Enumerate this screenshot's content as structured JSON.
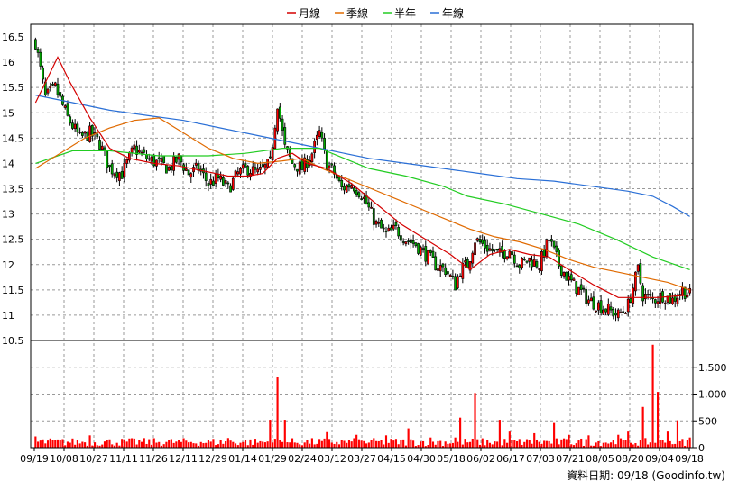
{
  "chart_data": {
    "type": "candlestick-volume",
    "legend": [
      {
        "name": "月線",
        "color": "#d40000"
      },
      {
        "name": "季線",
        "color": "#e06a00"
      },
      {
        "name": "半年",
        "color": "#22cc22"
      },
      {
        "name": "年線",
        "color": "#2a6fd6"
      }
    ],
    "colors": {
      "up": "#ff0000",
      "down": "#00aa00",
      "volume": "#ff0000"
    },
    "price_axis": {
      "min": 10.5,
      "max": 16.5,
      "ticks": [
        "16.5",
        "16",
        "15.5",
        "15",
        "14.5",
        "14",
        "13.5",
        "13",
        "12.5",
        "12",
        "11.5",
        "11",
        "10.5"
      ]
    },
    "volume_axis": {
      "min": 0,
      "max": 2000,
      "ticks": [
        "1,500",
        "1,000",
        "500",
        "0"
      ]
    },
    "date_labels": [
      "09/19",
      "10/08",
      "10/27",
      "11/11",
      "11/26",
      "12/11",
      "12/29",
      "01/14",
      "01/29",
      "02/24",
      "03/12",
      "03/27",
      "04/15",
      "04/30",
      "05/18",
      "06/02",
      "06/17",
      "07/03",
      "07/21",
      "08/05",
      "08/20",
      "09/04",
      "09/18"
    ],
    "footer": "資料日期: 09/18 (Goodinfo.tw)",
    "close_series": [
      [
        0,
        16.4
      ],
      [
        4,
        15.3
      ],
      [
        8,
        15.5
      ],
      [
        13,
        14.9
      ],
      [
        18,
        14.5
      ],
      [
        22,
        14.6
      ],
      [
        26,
        14.4
      ],
      [
        30,
        13.9
      ],
      [
        35,
        13.8
      ],
      [
        40,
        14.3
      ],
      [
        45,
        14.1
      ],
      [
        50,
        14.0
      ],
      [
        54,
        13.9
      ],
      [
        58,
        14.1
      ],
      [
        62,
        13.8
      ],
      [
        66,
        13.9
      ],
      [
        70,
        13.6
      ],
      [
        74,
        13.7
      ],
      [
        78,
        13.5
      ],
      [
        82,
        13.8
      ],
      [
        86,
        13.9
      ],
      [
        90,
        13.8
      ],
      [
        95,
        14.0
      ],
      [
        98,
        15.2
      ],
      [
        101,
        14.3
      ],
      [
        104,
        14.0
      ],
      [
        108,
        13.9
      ],
      [
        112,
        14.2
      ],
      [
        115,
        14.6
      ],
      [
        118,
        14.0
      ],
      [
        121,
        13.8
      ],
      [
        124,
        13.5
      ],
      [
        128,
        13.6
      ],
      [
        132,
        13.4
      ],
      [
        135,
        13.1
      ],
      [
        138,
        12.8
      ],
      [
        142,
        12.6
      ],
      [
        146,
        12.7
      ],
      [
        150,
        12.5
      ],
      [
        154,
        12.4
      ],
      [
        158,
        12.2
      ],
      [
        162,
        12.0
      ],
      [
        166,
        11.9
      ],
      [
        170,
        11.6
      ],
      [
        172,
        11.9
      ],
      [
        175,
        12.0
      ],
      [
        178,
        12.5
      ],
      [
        181,
        12.4
      ],
      [
        184,
        12.3
      ],
      [
        188,
        12.2
      ],
      [
        192,
        12.3
      ],
      [
        196,
        12.0
      ],
      [
        200,
        12.1
      ],
      [
        204,
        12.0
      ],
      [
        208,
        12.5
      ],
      [
        212,
        12.0
      ],
      [
        216,
        11.7
      ],
      [
        220,
        11.5
      ],
      [
        224,
        11.3
      ],
      [
        228,
        11.2
      ],
      [
        232,
        11.1
      ],
      [
        236,
        11.0
      ],
      [
        240,
        11.2
      ],
      [
        244,
        11.9
      ],
      [
        246,
        11.4
      ],
      [
        250,
        11.3
      ],
      [
        254,
        11.4
      ],
      [
        258,
        11.3
      ],
      [
        262,
        11.5
      ],
      [
        265,
        11.4
      ]
    ],
    "ma_monthly": [
      [
        0,
        15.2
      ],
      [
        5,
        15.7
      ],
      [
        9,
        16.1
      ],
      [
        14,
        15.6
      ],
      [
        22,
        14.9
      ],
      [
        30,
        14.3
      ],
      [
        38,
        14.1
      ],
      [
        48,
        14.0
      ],
      [
        58,
        13.95
      ],
      [
        68,
        13.85
      ],
      [
        78,
        13.75
      ],
      [
        86,
        13.75
      ],
      [
        92,
        13.8
      ],
      [
        98,
        14.1
      ],
      [
        104,
        14.2
      ],
      [
        110,
        14.0
      ],
      [
        118,
        13.9
      ],
      [
        128,
        13.6
      ],
      [
        138,
        13.2
      ],
      [
        148,
        12.8
      ],
      [
        158,
        12.5
      ],
      [
        168,
        12.2
      ],
      [
        176,
        11.9
      ],
      [
        184,
        12.2
      ],
      [
        192,
        12.3
      ],
      [
        200,
        12.2
      ],
      [
        208,
        12.15
      ],
      [
        216,
        11.9
      ],
      [
        226,
        11.6
      ],
      [
        236,
        11.35
      ],
      [
        244,
        11.35
      ],
      [
        252,
        11.35
      ],
      [
        265,
        11.4
      ]
    ],
    "ma_quarterly": [
      [
        0,
        13.9
      ],
      [
        10,
        14.2
      ],
      [
        20,
        14.5
      ],
      [
        30,
        14.7
      ],
      [
        40,
        14.85
      ],
      [
        50,
        14.9
      ],
      [
        60,
        14.6
      ],
      [
        70,
        14.3
      ],
      [
        80,
        14.1
      ],
      [
        90,
        14.0
      ],
      [
        100,
        14.05
      ],
      [
        108,
        14.1
      ],
      [
        116,
        13.9
      ],
      [
        126,
        13.7
      ],
      [
        136,
        13.5
      ],
      [
        146,
        13.3
      ],
      [
        156,
        13.1
      ],
      [
        166,
        12.9
      ],
      [
        176,
        12.7
      ],
      [
        186,
        12.55
      ],
      [
        196,
        12.45
      ],
      [
        206,
        12.3
      ],
      [
        216,
        12.1
      ],
      [
        226,
        11.95
      ],
      [
        236,
        11.85
      ],
      [
        246,
        11.75
      ],
      [
        256,
        11.65
      ],
      [
        265,
        11.5
      ]
    ],
    "ma_halfyear": [
      [
        0,
        14.0
      ],
      [
        15,
        14.25
      ],
      [
        30,
        14.25
      ],
      [
        50,
        14.15
      ],
      [
        70,
        14.15
      ],
      [
        85,
        14.2
      ],
      [
        100,
        14.3
      ],
      [
        115,
        14.3
      ],
      [
        125,
        14.1
      ],
      [
        135,
        13.9
      ],
      [
        150,
        13.75
      ],
      [
        165,
        13.55
      ],
      [
        175,
        13.35
      ],
      [
        190,
        13.2
      ],
      [
        205,
        13.0
      ],
      [
        220,
        12.8
      ],
      [
        235,
        12.5
      ],
      [
        250,
        12.15
      ],
      [
        265,
        11.9
      ]
    ],
    "ma_yearly": [
      [
        0,
        15.35
      ],
      [
        15,
        15.2
      ],
      [
        30,
        15.05
      ],
      [
        45,
        14.95
      ],
      [
        60,
        14.85
      ],
      [
        75,
        14.7
      ],
      [
        90,
        14.55
      ],
      [
        105,
        14.4
      ],
      [
        120,
        14.25
      ],
      [
        135,
        14.1
      ],
      [
        150,
        14.0
      ],
      [
        165,
        13.9
      ],
      [
        180,
        13.8
      ],
      [
        195,
        13.7
      ],
      [
        210,
        13.65
      ],
      [
        225,
        13.55
      ],
      [
        240,
        13.45
      ],
      [
        250,
        13.35
      ],
      [
        258,
        13.15
      ],
      [
        265,
        12.95
      ]
    ],
    "volume_spikes": [
      [
        0,
        210
      ],
      [
        22,
        230
      ],
      [
        40,
        170
      ],
      [
        55,
        160
      ],
      [
        78,
        180
      ],
      [
        95,
        520
      ],
      [
        98,
        1320
      ],
      [
        101,
        520
      ],
      [
        118,
        290
      ],
      [
        130,
        240
      ],
      [
        142,
        230
      ],
      [
        151,
        360
      ],
      [
        160,
        190
      ],
      [
        170,
        190
      ],
      [
        172,
        560
      ],
      [
        178,
        1020
      ],
      [
        188,
        520
      ],
      [
        192,
        300
      ],
      [
        202,
        270
      ],
      [
        210,
        460
      ],
      [
        216,
        240
      ],
      [
        224,
        230
      ],
      [
        236,
        240
      ],
      [
        240,
        300
      ],
      [
        246,
        760
      ],
      [
        250,
        1920
      ],
      [
        252,
        1040
      ],
      [
        256,
        300
      ],
      [
        260,
        510
      ],
      [
        265,
        190
      ]
    ]
  }
}
